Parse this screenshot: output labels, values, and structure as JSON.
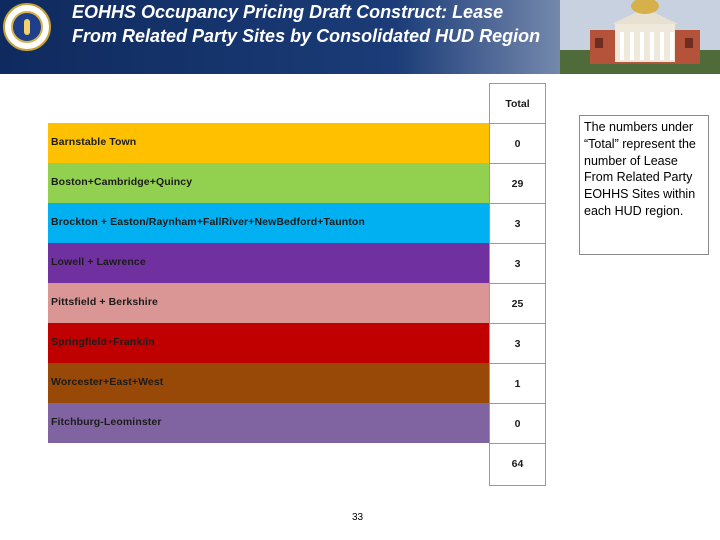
{
  "header": {
    "title": "EOHHS Occupancy Pricing Draft Construct: Lease From Related Party Sites by Consolidated HUD Region"
  },
  "table": {
    "column_header": "Total",
    "rows": [
      {
        "region": "Barnstable Town",
        "total": "0",
        "color": "#ffc000"
      },
      {
        "region": "Boston+Cambridge+Quincy",
        "total": "29",
        "color": "#92d050"
      },
      {
        "region": "Brockton + Easton/Raynham+FallRiver+NewBedford+Taunton",
        "total": "3",
        "color": "#00b0f0"
      },
      {
        "region": "Lowell + Lawrence",
        "total": "3",
        "color": "#7030a0"
      },
      {
        "region": "Pittsfield + Berkshire",
        "total": "25",
        "color": "#da9694"
      },
      {
        "region": "Springfield+Franklin",
        "total": "3",
        "color": "#c00000"
      },
      {
        "region": "Worcester+East+West",
        "total": "1",
        "color": "#984807"
      },
      {
        "region": "Fitchburg-Leominster",
        "total": "0",
        "color": "#8064a2"
      }
    ],
    "grand_total": "64"
  },
  "note": "The numbers under “Total” represent the number of Lease From Related Party EOHHS Sites within each HUD region.",
  "page_number": "33"
}
